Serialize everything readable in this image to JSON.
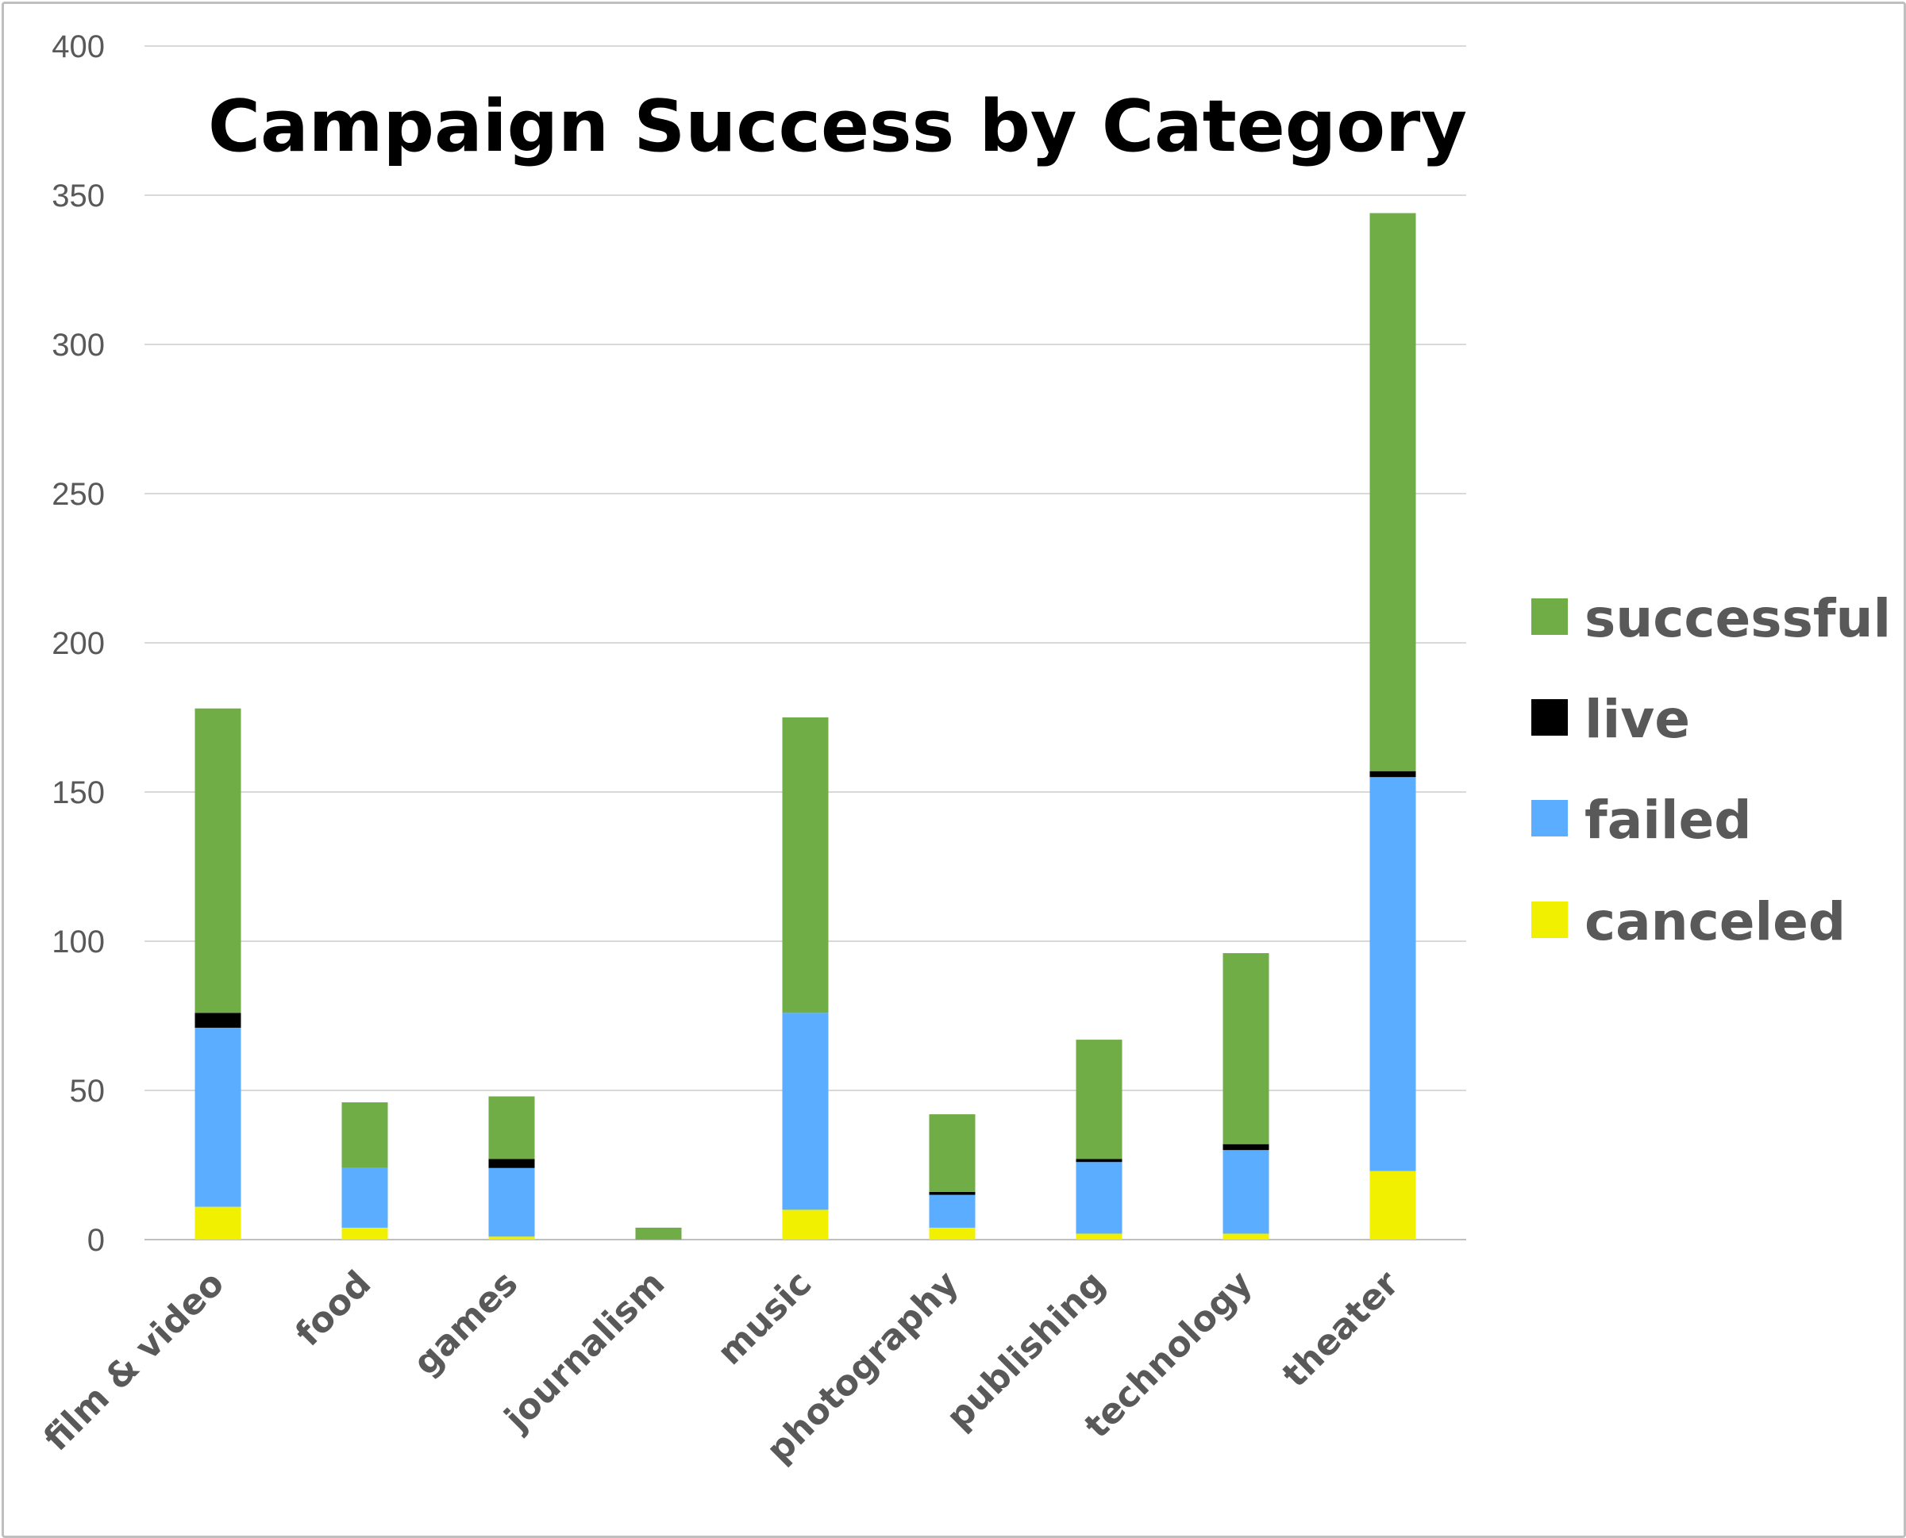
{
  "chart_data": {
    "type": "bar",
    "stacked": true,
    "title": "Campaign Success by Category",
    "xlabel": "",
    "ylabel": "",
    "ylim": [
      0,
      400
    ],
    "yticks": [
      "0",
      "50",
      "100",
      "150",
      "200",
      "250",
      "300",
      "350",
      "400"
    ],
    "grid": true,
    "legend_position": "right",
    "categories": [
      "film & video",
      "food",
      "games",
      "journalism",
      "music",
      "photography",
      "publishing",
      "technology",
      "theater"
    ],
    "series": [
      {
        "name": "canceled",
        "color": "#f0f000",
        "values": [
          11,
          4,
          1,
          0,
          10,
          4,
          2,
          2,
          23
        ]
      },
      {
        "name": "failed",
        "color": "#5badff",
        "values": [
          60,
          20,
          23,
          0,
          66,
          11,
          24,
          28,
          132
        ]
      },
      {
        "name": "live",
        "color": "#000000",
        "values": [
          5,
          0,
          3,
          0,
          0,
          1,
          1,
          2,
          2
        ]
      },
      {
        "name": "successful",
        "color": "#70ad47",
        "values": [
          102,
          22,
          21,
          4,
          99,
          26,
          40,
          64,
          187
        ]
      }
    ],
    "legend_order": [
      "successful",
      "live",
      "failed",
      "canceled"
    ]
  }
}
